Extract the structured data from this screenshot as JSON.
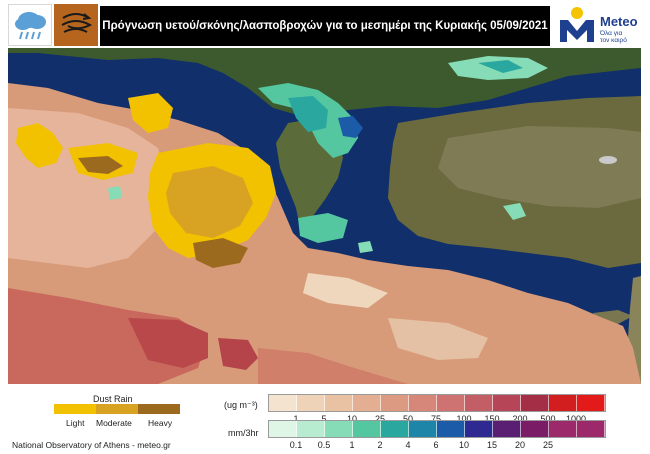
{
  "header": {
    "title": "Πρόγνωση υετού/σκόνης/λασποβροχών  για το μεσημέρι της Κυριακής 05/09/2021",
    "logo_name": "Meteo",
    "logo_tagline_1": "Όλα για",
    "logo_tagline_2": "τον καιρό",
    "left_icons": [
      "rain-cloud-icon",
      "dust-swirl-icon"
    ]
  },
  "dust_legend": {
    "title": "Dust Rain",
    "items": [
      {
        "label": "Light",
        "color": "#f2c200"
      },
      {
        "label": "Moderate",
        "color": "#d8a322"
      },
      {
        "label": "Heavy",
        "color": "#9c6a1e"
      }
    ]
  },
  "dust_concentration": {
    "unit": "(ug m⁻³)",
    "ticks": [
      "1",
      "5",
      "10",
      "25",
      "50",
      "75",
      "100",
      "150",
      "200",
      "500",
      "1000"
    ],
    "colors": [
      "#f4e3cf",
      "#efd3b8",
      "#e9c2a3",
      "#e3ae91",
      "#dc9a82",
      "#d6877a",
      "#ce7371",
      "#c45e66",
      "#b64657",
      "#a32e45",
      "#e21a1a",
      "#e21a1a"
    ]
  },
  "precipitation": {
    "unit": "mm/3hr",
    "ticks": [
      "0.1",
      "0.5",
      "1",
      "2",
      "4",
      "6",
      "10",
      "15",
      "20",
      "25"
    ],
    "colors": [
      "#dff5e6",
      "#b8ecd0",
      "#86dcb6",
      "#55c7a0",
      "#2aa8a0",
      "#1d86a8",
      "#1b5ba8",
      "#2f2a92",
      "#5a1f73",
      "#7a1c66",
      "#9c2a6a"
    ]
  },
  "footer": {
    "credit": "National Observatory of Athens - meteo.gr"
  }
}
